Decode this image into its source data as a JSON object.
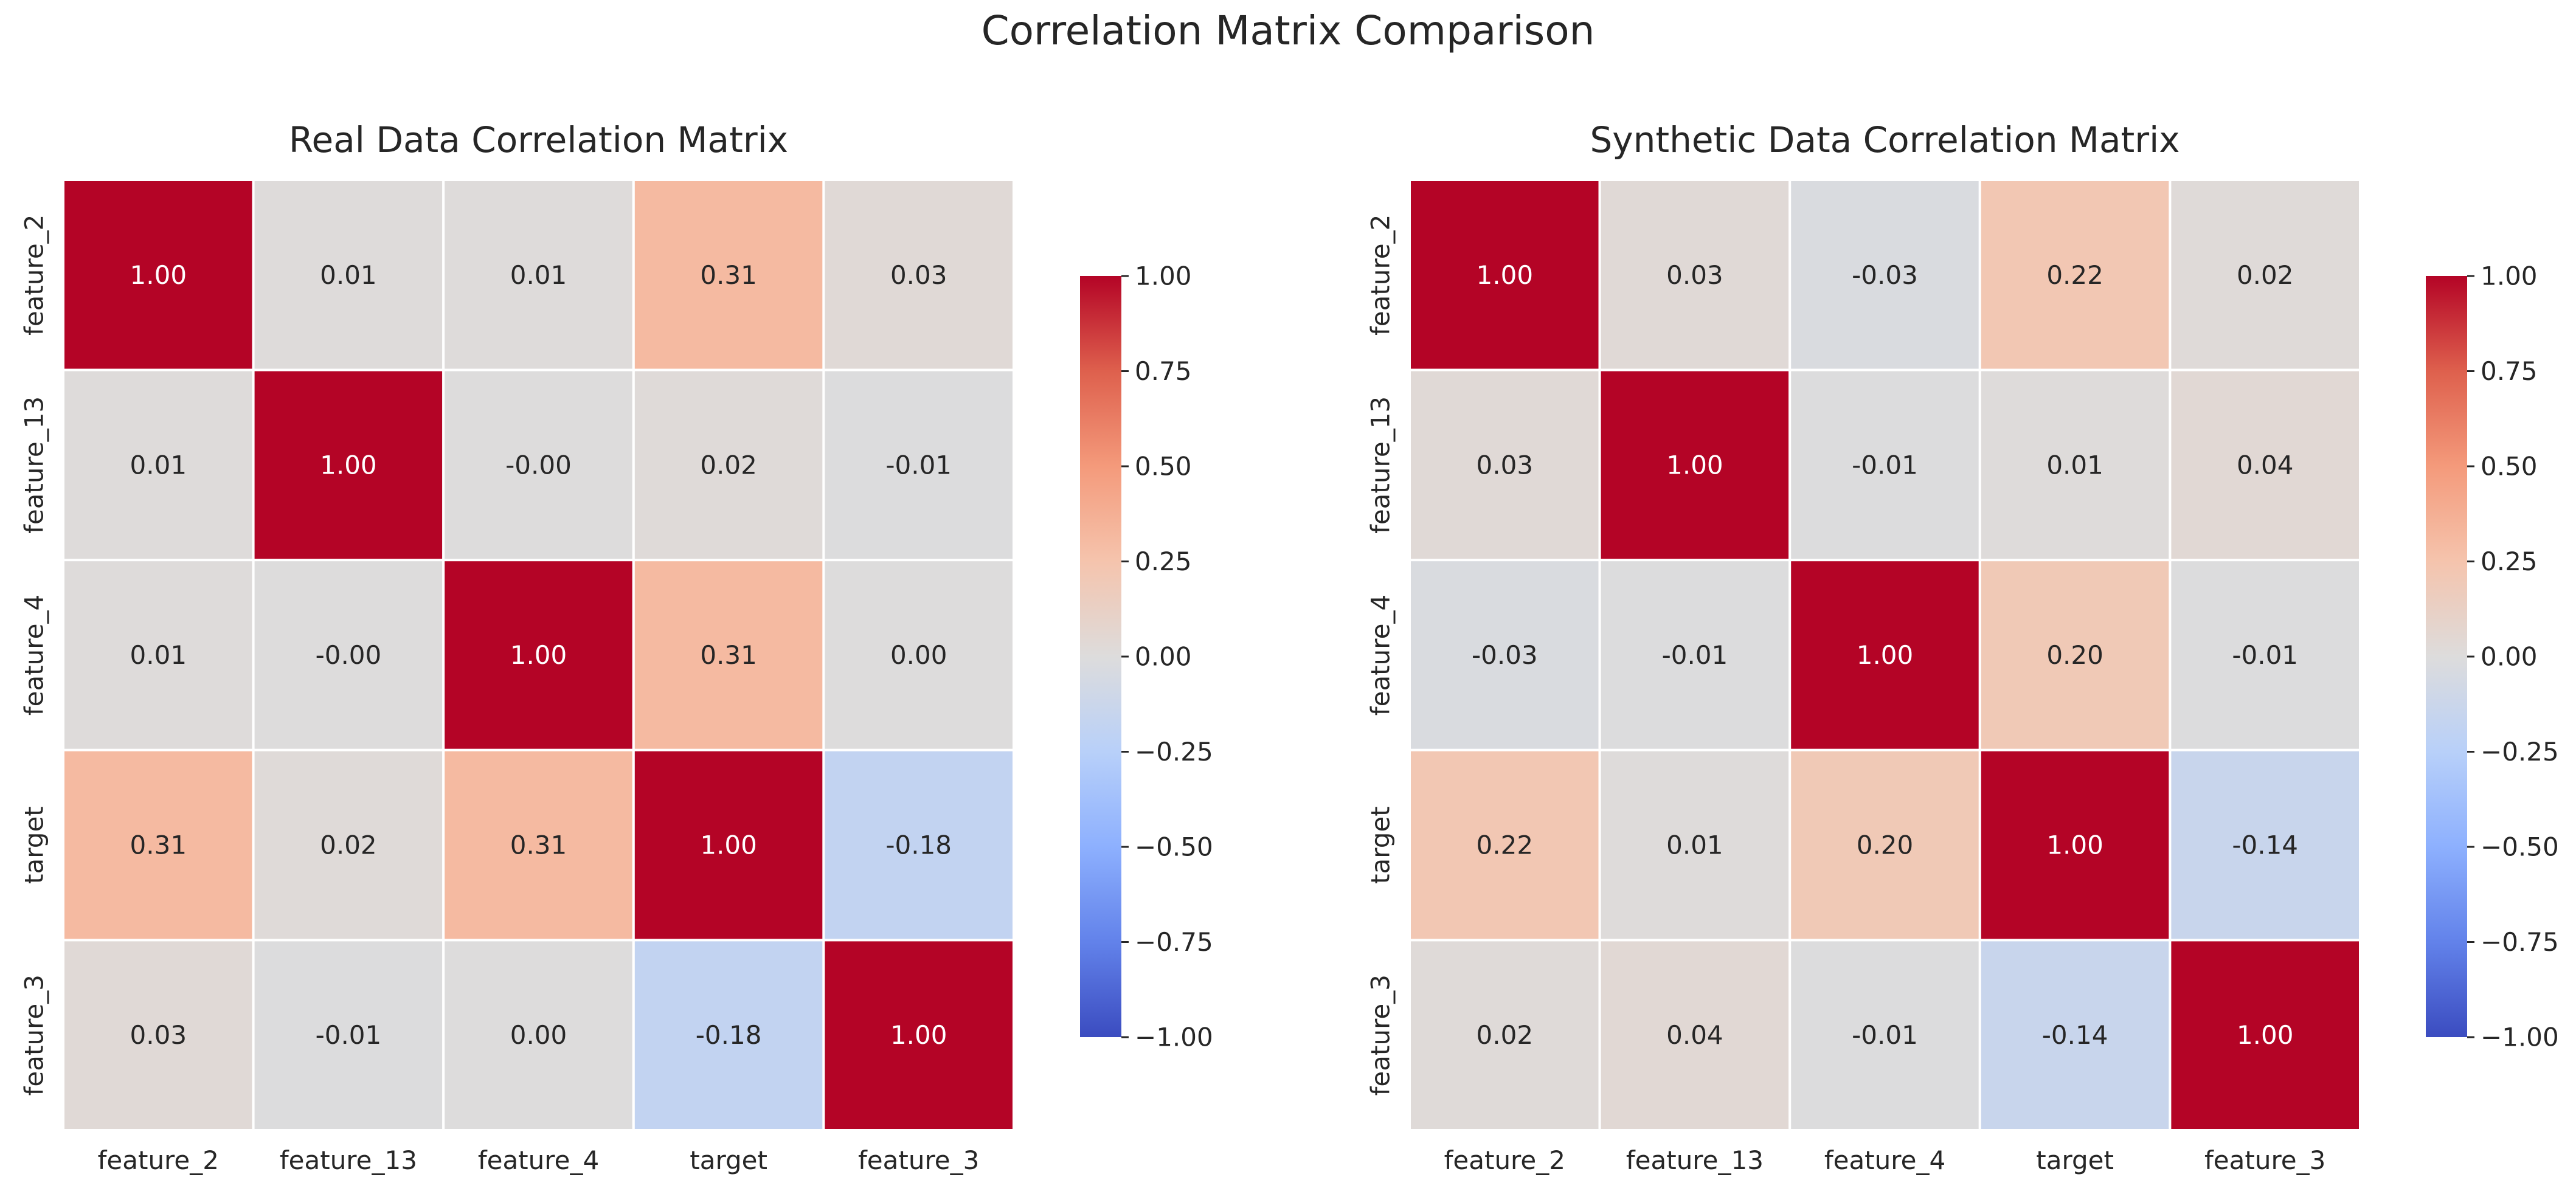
{
  "suptitle": "Correlation Matrix Comparison",
  "chart_data": [
    {
      "type": "heatmap",
      "title": "Real Data Correlation Matrix",
      "rows": [
        "feature_2",
        "feature_13",
        "feature_4",
        "target",
        "feature_3"
      ],
      "columns": [
        "feature_2",
        "feature_13",
        "feature_4",
        "target",
        "feature_3"
      ],
      "values": [
        [
          1.0,
          0.01,
          0.01,
          0.31,
          0.03
        ],
        [
          0.01,
          1.0,
          -0.0,
          0.02,
          -0.01
        ],
        [
          0.01,
          -0.0,
          1.0,
          0.31,
          0.0
        ],
        [
          0.31,
          0.02,
          0.31,
          1.0,
          -0.18
        ],
        [
          0.03,
          -0.01,
          0.0,
          -0.18,
          1.0
        ]
      ],
      "labels": [
        [
          "1.00",
          "0.01",
          "0.01",
          "0.31",
          "0.03"
        ],
        [
          "0.01",
          "1.00",
          "-0.00",
          "0.02",
          "-0.01"
        ],
        [
          "0.01",
          "-0.00",
          "1.00",
          "0.31",
          "0.00"
        ],
        [
          "0.31",
          "0.02",
          "0.31",
          "1.00",
          "-0.18"
        ],
        [
          "0.03",
          "-0.01",
          "0.00",
          "-0.18",
          "1.00"
        ]
      ],
      "colormap": "coolwarm",
      "vmin": -1.0,
      "vmax": 1.0,
      "colorbar_ticks": [
        "1.00",
        "0.75",
        "0.50",
        "0.25",
        "0.00",
        "−0.25",
        "−0.50",
        "−0.75",
        "−1.00"
      ]
    },
    {
      "type": "heatmap",
      "title": "Synthetic Data Correlation Matrix",
      "rows": [
        "feature_2",
        "feature_13",
        "feature_4",
        "target",
        "feature_3"
      ],
      "columns": [
        "feature_2",
        "feature_13",
        "feature_4",
        "target",
        "feature_3"
      ],
      "values": [
        [
          1.0,
          0.03,
          -0.03,
          0.22,
          0.02
        ],
        [
          0.03,
          1.0,
          -0.01,
          0.01,
          0.04
        ],
        [
          -0.03,
          -0.01,
          1.0,
          0.2,
          -0.01
        ],
        [
          0.22,
          0.01,
          0.2,
          1.0,
          -0.14
        ],
        [
          0.02,
          0.04,
          -0.01,
          -0.14,
          1.0
        ]
      ],
      "labels": [
        [
          "1.00",
          "0.03",
          "-0.03",
          "0.22",
          "0.02"
        ],
        [
          "0.03",
          "1.00",
          "-0.01",
          "0.01",
          "0.04"
        ],
        [
          "-0.03",
          "-0.01",
          "1.00",
          "0.20",
          "-0.01"
        ],
        [
          "0.22",
          "0.01",
          "0.20",
          "1.00",
          "-0.14"
        ],
        [
          "0.02",
          "0.04",
          "-0.01",
          "-0.14",
          "1.00"
        ]
      ],
      "colormap": "coolwarm",
      "vmin": -1.0,
      "vmax": 1.0,
      "colorbar_ticks": [
        "1.00",
        "0.75",
        "0.50",
        "0.25",
        "0.00",
        "−0.25",
        "−0.50",
        "−0.75",
        "−1.00"
      ]
    }
  ]
}
